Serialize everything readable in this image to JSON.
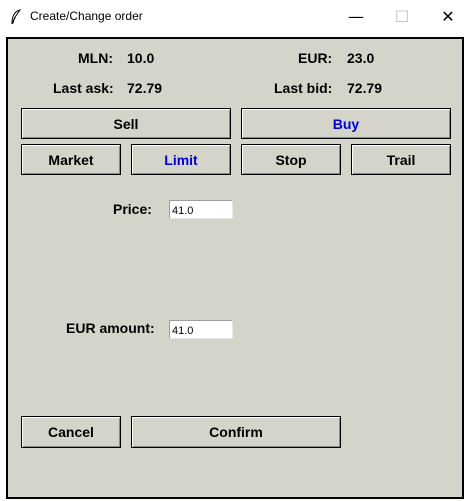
{
  "window": {
    "title": "Create/Change order",
    "minimize_glyph": "—",
    "maximize_glyph": "☐",
    "close_glyph": "✕"
  },
  "balances": {
    "base_label": "MLN:",
    "base_value": "10.0",
    "quote_label": "EUR:",
    "quote_value": "23.0",
    "ask_label": "Last ask:",
    "ask_value": "72.79",
    "bid_label": "Last bid:",
    "bid_value": "72.79"
  },
  "side": {
    "sell_label": "Sell",
    "buy_label": "Buy",
    "selected": "Buy"
  },
  "order_type": {
    "market_label": "Market",
    "limit_label": "Limit",
    "stop_label": "Stop",
    "trail_label": "Trail",
    "selected": "Limit"
  },
  "form": {
    "price_label": "Price:",
    "price_value": "41.0",
    "amount_label": "EUR amount:",
    "amount_value": "41.0"
  },
  "actions": {
    "cancel_label": "Cancel",
    "confirm_label": "Confirm"
  },
  "colors": {
    "background": "#d4d4ca",
    "active_text": "#0000d8"
  }
}
